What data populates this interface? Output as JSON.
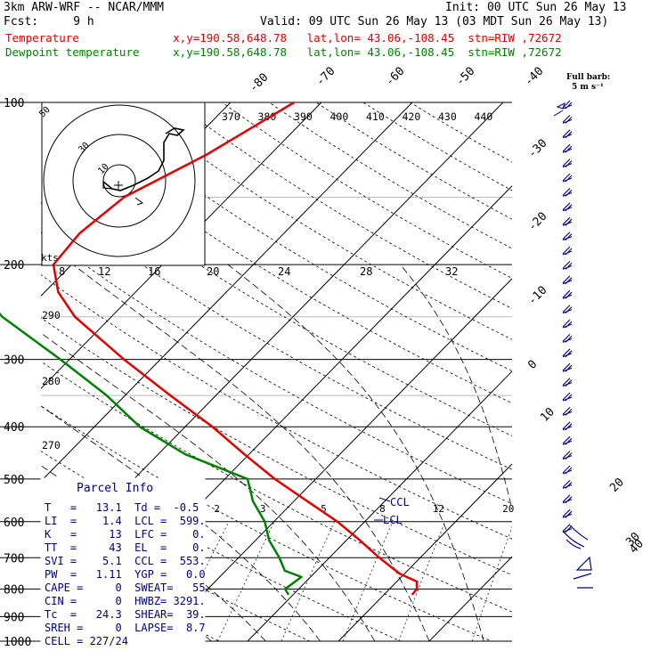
{
  "header": {
    "model": "3km ARW-WRF -- NCAR/MMM",
    "init": "Init: 00 UTC Sun 26 May 13",
    "fcst": "Fcst:     9 h",
    "valid": "Valid: 09 UTC Sun 26 May 13 (03 MDT Sun 26 May 13)",
    "temp_line": "Temperature              x,y=190.58,648.78   lat,lon= 43.06,-108.45  stn=RIW ,72672",
    "dewp_line": "Dewpoint temperature     x,y=190.58,648.78   lat,lon= 43.06,-108.45  stn=RIW ,72672",
    "barb_note_1": "Full barb:",
    "barb_note_2": "5 m s⁻¹"
  },
  "colors": {
    "temperature": "#e00000",
    "dewpoint": "#008000",
    "info": "#000080",
    "grid": "#000000"
  },
  "chart_data": {
    "type": "line",
    "title": "",
    "ylabel": "",
    "xlabel": "",
    "pressure_ticks": [
      "100",
      "200",
      "300",
      "400",
      "500",
      "600",
      "700",
      "800",
      "900",
      "1000"
    ],
    "isotherm_labels": [
      "-80",
      "-70",
      "-60",
      "-50",
      "-40",
      "-30",
      "-20",
      "-10",
      "0",
      "10",
      "20",
      "30",
      "40"
    ],
    "theta_e_labels": [
      "370",
      "380",
      "390",
      "400",
      "410",
      "420",
      "430",
      "440"
    ],
    "dry_adiabat_labels": [
      "290",
      "280",
      "270"
    ],
    "mixing_ratio_labels": [
      "2",
      "3",
      "5",
      "8",
      "12",
      "20"
    ],
    "hodograph_speed_labels": [
      "8",
      "12",
      "16",
      "20",
      "24",
      "28",
      "32"
    ],
    "hodograph_units": "kts",
    "hodograph_ring_labels": [
      "50",
      "30",
      "10"
    ],
    "temperature_profile": [
      {
        "p": 820,
        "t": 13.1
      },
      {
        "p": 800,
        "t": 13.0
      },
      {
        "p": 775,
        "t": 12.2
      },
      {
        "p": 750,
        "t": 9.5
      },
      {
        "p": 700,
        "t": 5.5
      },
      {
        "p": 650,
        "t": 1.5
      },
      {
        "p": 600,
        "t": -3.0
      },
      {
        "p": 550,
        "t": -8.5
      },
      {
        "p": 500,
        "t": -14.5
      },
      {
        "p": 450,
        "t": -20.5
      },
      {
        "p": 400,
        "t": -27.0
      },
      {
        "p": 350,
        "t": -35.0
      },
      {
        "p": 300,
        "t": -44.0
      },
      {
        "p": 250,
        "t": -54.0
      },
      {
        "p": 225,
        "t": -58.5
      },
      {
        "p": 200,
        "t": -62.0
      },
      {
        "p": 175,
        "t": -62.5
      },
      {
        "p": 150,
        "t": -61.5
      },
      {
        "p": 125,
        "t": -57.0
      },
      {
        "p": 100,
        "t": -53.0
      }
    ],
    "dewpoint_profile": [
      {
        "p": 820,
        "t": -0.5
      },
      {
        "p": 800,
        "t": -1.5
      },
      {
        "p": 760,
        "t": -1.0
      },
      {
        "p": 740,
        "t": -3.5
      },
      {
        "p": 700,
        "t": -5.5
      },
      {
        "p": 650,
        "t": -8.5
      },
      {
        "p": 600,
        "t": -11.0
      },
      {
        "p": 550,
        "t": -14.5
      },
      {
        "p": 500,
        "t": -17.5
      },
      {
        "p": 450,
        "t": -27.0
      },
      {
        "p": 400,
        "t": -35.0
      },
      {
        "p": 350,
        "t": -42.0
      },
      {
        "p": 300,
        "t": -51.0
      },
      {
        "p": 250,
        "t": -62.0
      },
      {
        "p": 225,
        "t": -67.0
      },
      {
        "p": 200,
        "t": -72.0
      },
      {
        "p": 175,
        "t": -76.0
      },
      {
        "p": 150,
        "t": -79.0
      },
      {
        "p": 125,
        "t": -83.0
      },
      {
        "p": 100,
        "t": -87.0
      }
    ],
    "annotations": [
      "CCL",
      "LCL"
    ],
    "parcel_info": {
      "title": "Parcel Info",
      "rows": [
        "T   =   13.1  Td =  -0.5",
        "LI  =    1.4  LCL =  599.",
        "K   =     13  LFC =    0.",
        "TT  =     43  EL  =    0.",
        "SVI =    5.1  CCL =  553.",
        "PW  =   1.11  YGP =   0.0",
        "CAPE =     0  SWEAT=   55",
        "CIN =      0  HWBZ= 3291.",
        "Tc  =   24.3  SHEAR=  39.",
        "SREH =     0  LAPSE=  8.7",
        "CELL = 227/24"
      ]
    }
  }
}
